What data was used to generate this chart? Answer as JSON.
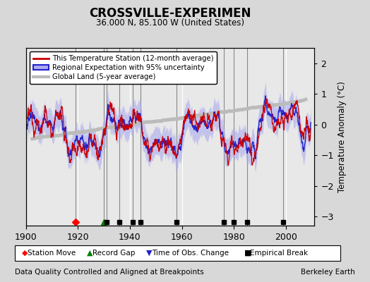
{
  "title": "CROSSVILLE-EXPERIMEN",
  "subtitle": "36.000 N, 85.100 W (United States)",
  "ylabel": "Temperature Anomaly (°C)",
  "xlabel_note": "Data Quality Controlled and Aligned at Breakpoints",
  "xlabel_note_right": "Berkeley Earth",
  "xlim": [
    1900,
    2011
  ],
  "ylim": [
    -3.3,
    2.5
  ],
  "yticks": [
    -3,
    -2,
    -1,
    0,
    1,
    2
  ],
  "xticks": [
    1900,
    1920,
    1940,
    1960,
    1980,
    2000
  ],
  "bg_color": "#d8d8d8",
  "plot_bg_color": "#e8e8e8",
  "station_line_color": "#cc0000",
  "regional_line_color": "#2222cc",
  "regional_fill_color": "#aaaaee",
  "global_line_color": "#bbbbbb",
  "legend_labels": [
    "This Temperature Station (12-month average)",
    "Regional Expectation with 95% uncertainty",
    "Global Land (5-year average)"
  ],
  "marker_events": {
    "station_move": [
      1919
    ],
    "record_gap": [
      1930
    ],
    "time_obs_change": [],
    "empirical_break": [
      1931,
      1936,
      1941,
      1944,
      1958,
      1976,
      1980,
      1985,
      1999
    ]
  },
  "vline_color": "#888888",
  "seed": 12345
}
